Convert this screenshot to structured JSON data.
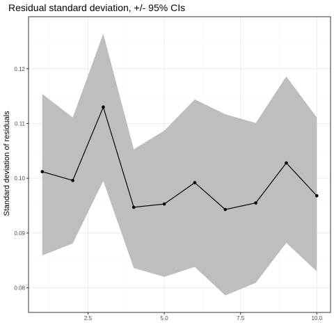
{
  "chart_data": {
    "type": "line",
    "title": "Residual standard deviation, +/- 95% CIs",
    "xlabel": "",
    "ylabel": "Standard deviation of residuals",
    "xlim": [
      0.55,
      10.45
    ],
    "ylim": [
      0.0755,
      0.1295
    ],
    "x_ticks": [
      2.5,
      5.0,
      7.5,
      10.0
    ],
    "x_tick_labels": [
      "2.5",
      "5.0",
      "7.5",
      "10.0"
    ],
    "y_ticks": [
      0.08,
      0.09,
      0.1,
      0.11,
      0.12
    ],
    "y_tick_labels": [
      "0.08",
      "0.09",
      "0.10",
      "0.11",
      "0.12"
    ],
    "grid": true,
    "series": [
      {
        "x": [
          1,
          2,
          3,
          4,
          5,
          6,
          7,
          8,
          9,
          10
        ],
        "values": [
          0.1012,
          0.0996,
          0.113,
          0.0947,
          0.0953,
          0.0992,
          0.0943,
          0.0955,
          0.1028,
          0.0968
        ],
        "lower": [
          0.0859,
          0.0881,
          0.0995,
          0.0836,
          0.082,
          0.0838,
          0.0786,
          0.0809,
          0.0882,
          0.083
        ],
        "upper": [
          0.1154,
          0.1111,
          0.1264,
          0.1053,
          0.1087,
          0.1144,
          0.1117,
          0.1101,
          0.1186,
          0.1111
        ]
      }
    ],
    "colors": {
      "ribbon": "#bebebe",
      "line": "#000000",
      "grid_major": "#ebebeb",
      "grid_minor": "#f5f5f5",
      "border": "#333333",
      "tick_text": "#4d4d4d"
    }
  }
}
